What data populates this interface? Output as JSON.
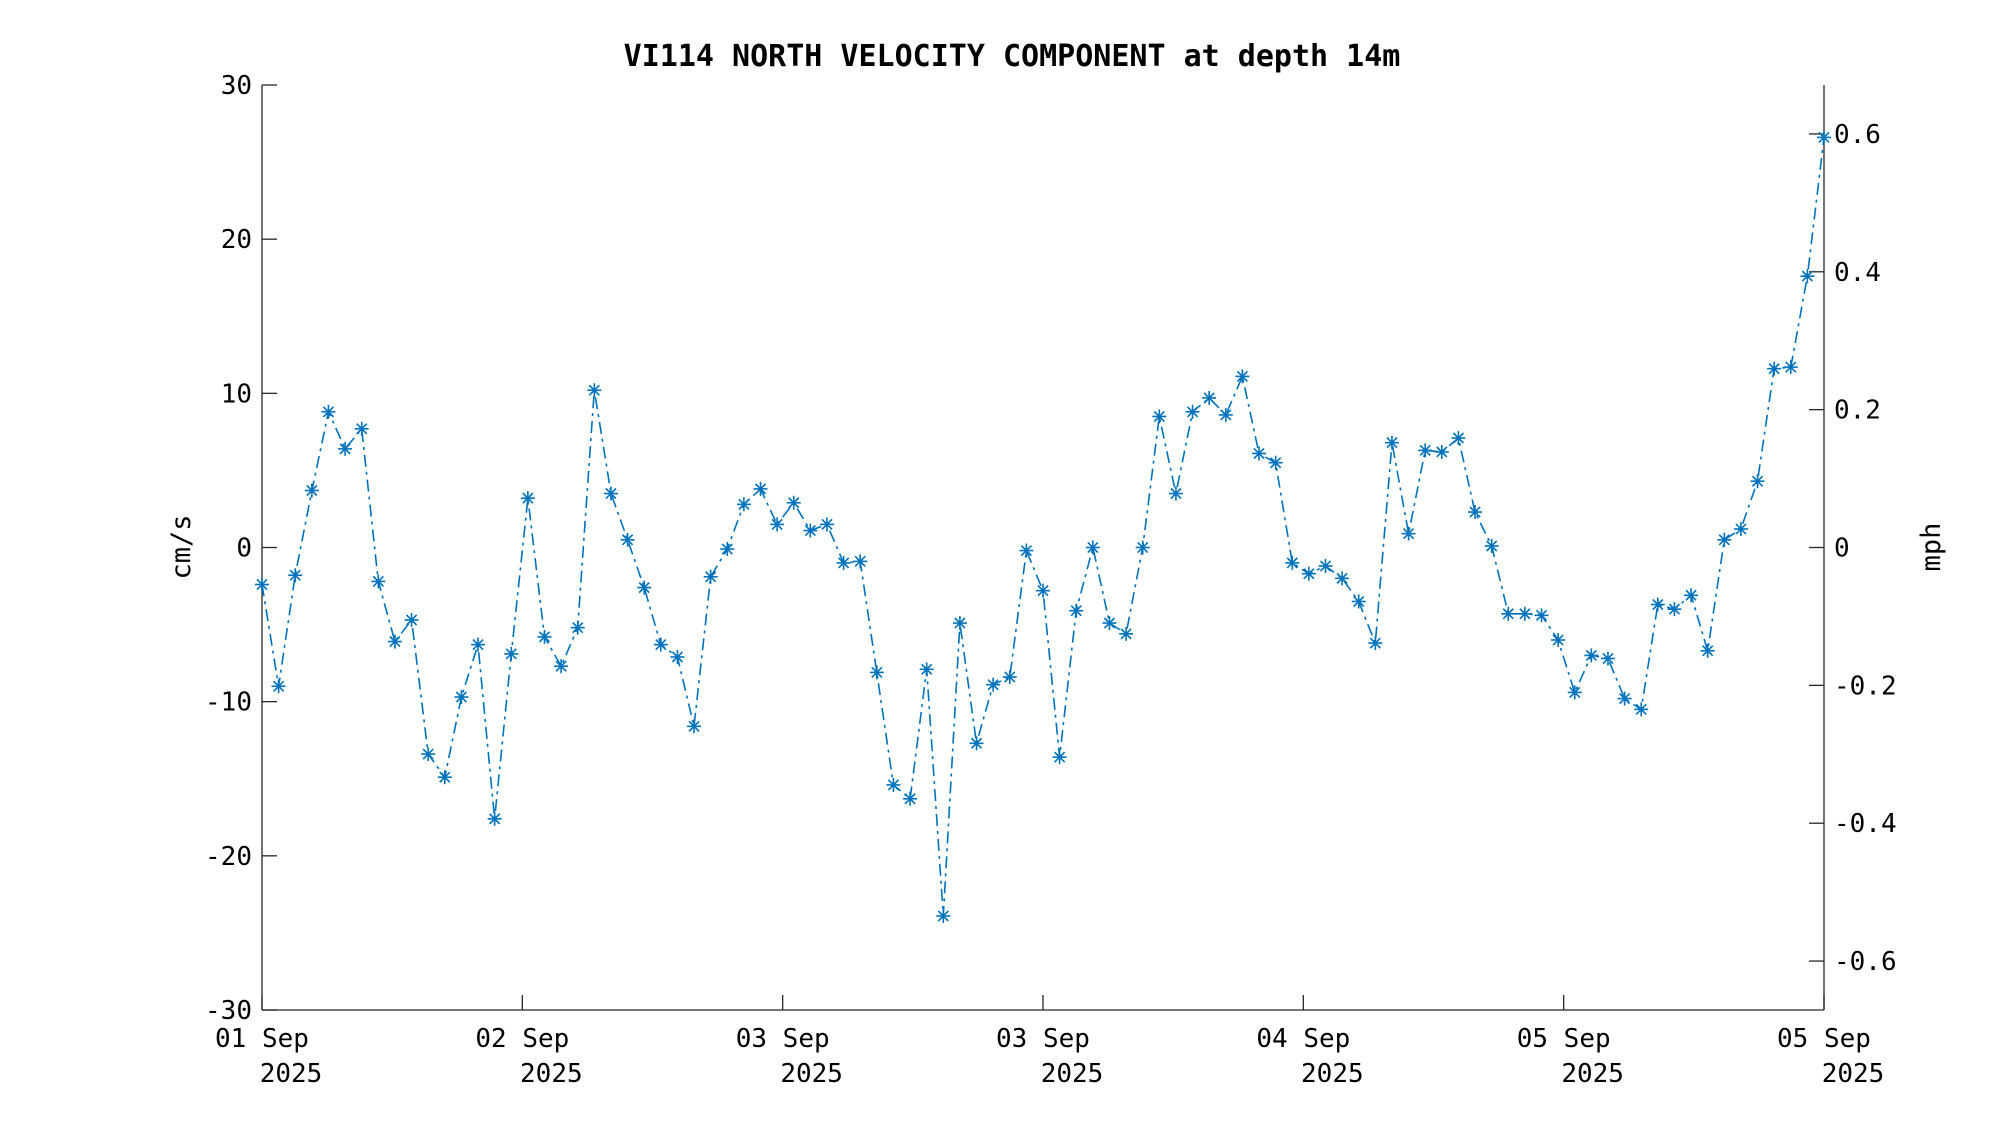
{
  "chart_data": {
    "type": "line",
    "title": "VI114 NORTH VELOCITY COMPONENT at depth 14m",
    "ylabel": "cm/s",
    "ylabel_right": "mph",
    "ylim": [
      -30,
      30
    ],
    "ylim_right": [
      -0.671,
      0.671
    ],
    "yticks": [
      "-30",
      "-20",
      "-10",
      "0",
      "10",
      "20",
      "30"
    ],
    "yticks_right": [
      "-0.6",
      "-0.4",
      "-0.2",
      "0",
      "0.2",
      "0.4",
      "0.6"
    ],
    "xticks": [
      {
        "line1": "01 Sep",
        "line2": "2025"
      },
      {
        "line1": "02 Sep",
        "line2": "2025"
      },
      {
        "line1": "03 Sep",
        "line2": "2025"
      },
      {
        "line1": "03 Sep",
        "line2": "2025"
      },
      {
        "line1": "04 Sep",
        "line2": "2025"
      },
      {
        "line1": "05 Sep",
        "line2": "2025"
      },
      {
        "line1": "05 Sep",
        "line2": "2025"
      }
    ],
    "grid": false,
    "series": [
      {
        "line_style": "dash-dot",
        "marker": "asterisk",
        "color": "#0072BD",
        "values": [
          -2.4,
          -9.0,
          -1.8,
          3.7,
          8.8,
          6.4,
          7.7,
          -2.2,
          -6.1,
          -4.7,
          -13.4,
          -14.9,
          -9.7,
          -6.3,
          -17.6,
          -6.9,
          3.2,
          -5.8,
          -7.7,
          -5.2,
          10.2,
          3.5,
          0.5,
          -2.6,
          -6.3,
          -7.1,
          -11.6,
          -1.9,
          -0.1,
          2.8,
          3.8,
          1.5,
          2.9,
          1.1,
          1.5,
          -1.0,
          -0.9,
          -8.1,
          -15.4,
          -16.3,
          -7.9,
          -23.9,
          -4.9,
          -12.7,
          -8.9,
          -8.4,
          -0.2,
          -2.8,
          -13.6,
          -4.1,
          0.0,
          -4.9,
          -5.6,
          0.0,
          8.5,
          3.5,
          8.8,
          9.7,
          8.6,
          11.1,
          6.1,
          5.5,
          -1.0,
          -1.7,
          -1.2,
          -2.0,
          -3.5,
          -6.2,
          6.8,
          0.9,
          6.3,
          6.2,
          7.1,
          2.3,
          0.1,
          -4.3,
          -4.3,
          -4.4,
          -6.0,
          -9.4,
          -7.0,
          -7.2,
          -9.8,
          -10.5,
          -3.7,
          -4.0,
          -3.1,
          -6.7,
          0.5,
          1.2,
          4.3,
          11.6,
          11.7,
          17.6,
          26.6
        ]
      }
    ]
  }
}
